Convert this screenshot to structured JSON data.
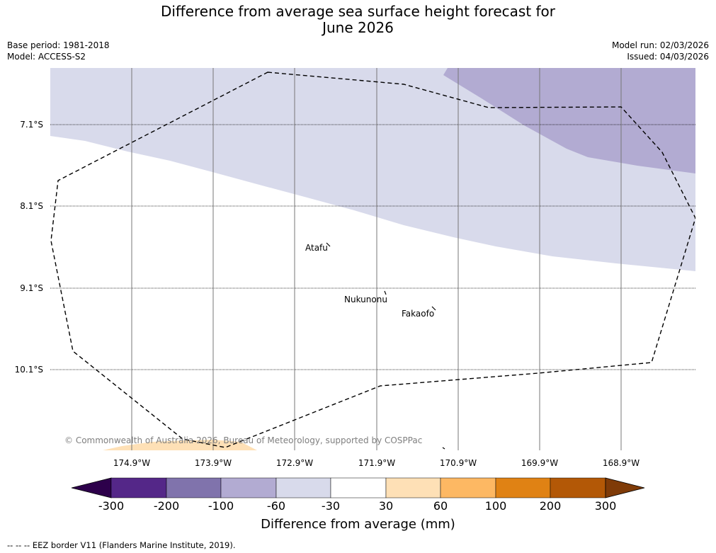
{
  "title_line1": "Difference from average sea surface height forecast for",
  "title_line2": "June 2026",
  "base_period": "Base period: 1981-2018",
  "model": "Model: ACCESS-S2",
  "model_run": "Model run: 02/03/2026",
  "issued": "Issued: 04/03/2026",
  "lat_labels": [
    "7.1°S",
    "8.1°S",
    "9.1°S",
    "10.1°S"
  ],
  "lon_labels": [
    "174.9°W",
    "173.9°W",
    "172.9°W",
    "171.9°W",
    "170.9°W",
    "169.9°W",
    "168.9°W"
  ],
  "places": [
    "Atafu",
    "Nukunonu",
    "Fakaofo"
  ],
  "copyright": "© Commonwealth of Australia 2026, Bureau of Meteorology, supported by COSPPac",
  "colorbar": {
    "ticks": [
      "-300",
      "-200",
      "-100",
      "-60",
      "-30",
      "30",
      "60",
      "100",
      "200",
      "300"
    ],
    "colors": [
      "#2d004b",
      "#542788",
      "#8073ac",
      "#b2abd2",
      "#d8daeb",
      "#ffffff",
      "#fee0b6",
      "#fdb863",
      "#e08214",
      "#b35806",
      "#7f3b08"
    ],
    "label": "Difference from average (mm)"
  },
  "legend_eez": "-- -- -- EEZ border V11 (Flanders Marine Institute, 2019)."
}
